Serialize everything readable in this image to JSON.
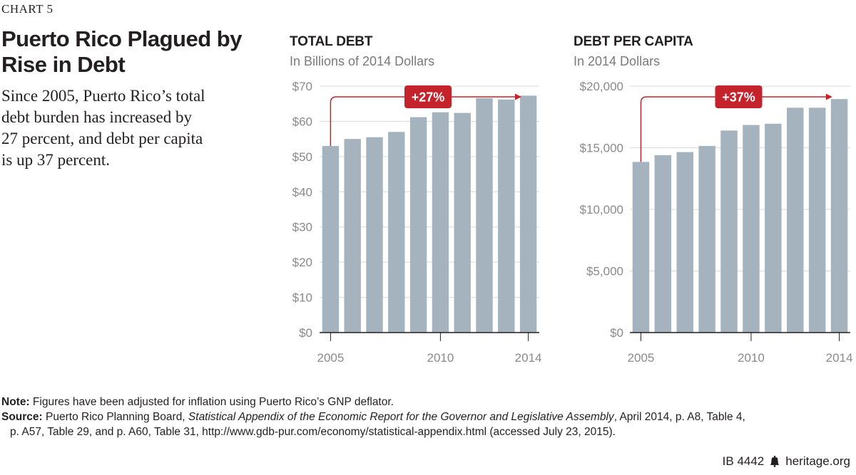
{
  "header": {
    "chart_label": "CHART 5",
    "title_line1": "Puerto Rico Plagued by",
    "title_line2": "Rise in Debt",
    "summary_line1": "Since 2005, Puerto Rico’s total",
    "summary_line2": "debt burden has increased by",
    "summary_line3": "27 percent, and debt per capita",
    "summary_line4": "is up 37 percent."
  },
  "colors": {
    "bar": "#a4b3be",
    "accent": "#c5232b",
    "axis": "#231f20",
    "grid": "#d9d9d9",
    "tick": "#8a8a8a"
  },
  "chart_data": [
    {
      "type": "bar",
      "title": "TOTAL DEBT",
      "subtitle": "In Billions of 2014 Dollars",
      "x": [
        2005,
        2006,
        2007,
        2008,
        2009,
        2010,
        2011,
        2012,
        2013,
        2014
      ],
      "values": [
        53.0,
        55.0,
        55.5,
        57.0,
        61.2,
        62.6,
        62.4,
        66.6,
        66.2,
        67.3
      ],
      "ylim": [
        0,
        70
      ],
      "y_ticks": [
        0,
        10,
        20,
        30,
        40,
        50,
        60,
        70
      ],
      "y_tick_labels": [
        "$0",
        "$10",
        "$20",
        "$30",
        "$40",
        "$50",
        "$60",
        "$70"
      ],
      "x_tick_labels": [
        "2005",
        "2010",
        "2014"
      ],
      "annotation": "+27%"
    },
    {
      "type": "bar",
      "title": "DEBT PER CAPITA",
      "subtitle": "In 2014  Dollars",
      "x": [
        2005,
        2006,
        2007,
        2008,
        2009,
        2010,
        2011,
        2012,
        2013,
        2014
      ],
      "values": [
        13850,
        14400,
        14650,
        15150,
        16400,
        16850,
        16950,
        18250,
        18250,
        18950
      ],
      "ylim": [
        0,
        20000
      ],
      "y_ticks": [
        0,
        5000,
        10000,
        15000,
        20000
      ],
      "y_tick_labels": [
        "$0",
        "$5,000",
        "$10,000",
        "$15,000",
        "$20,000"
      ],
      "x_tick_labels": [
        "2005",
        "2010",
        "2014"
      ],
      "annotation": "+37%"
    }
  ],
  "footer": {
    "note_label": "Note:",
    "note_text": " Figures have been adjusted for inflation using Puerto Rico’s GNP deflator.",
    "source_label": "Source:",
    "source_text1": " Puerto Rico Planning Board, ",
    "source_italic": "Statistical Appendix of the Economic Report for the Governor and Legislative Assembly",
    "source_text2": ", April 2014, p. A8, Table 4,",
    "source_line2": "p. A57, Table 29, and p. A60, Table 31, http://www.gdb-pur.com/economy/statistical-appendix.html (accessed July 23, 2015).",
    "brief_id": "IB 4442",
    "site": "heritage.org"
  }
}
